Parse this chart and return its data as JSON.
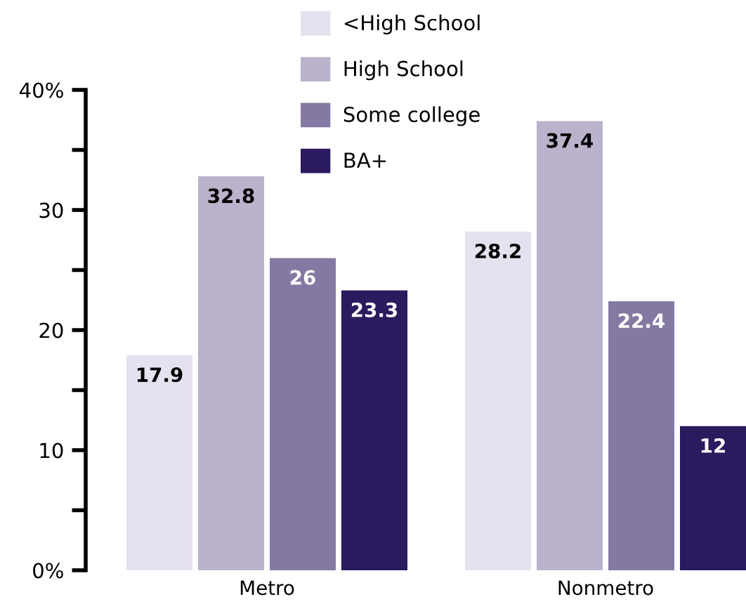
{
  "chart_data": {
    "type": "bar",
    "categories": [
      "Metro",
      "Nonmetro"
    ],
    "series": [
      {
        "name": "<High School",
        "color": "#e6e1ee",
        "values": [
          17.9,
          28.2
        ]
      },
      {
        "name": "High School",
        "color": "#bbb2cc",
        "values": [
          32.8,
          37.4
        ]
      },
      {
        "name": "Some college",
        "color": "#8579a3",
        "values": [
          26,
          22.4
        ]
      },
      {
        "name": "BA+",
        "color": "#2b1a5e",
        "values": [
          23.3,
          12
        ]
      }
    ],
    "ylim": [
      0,
      40
    ],
    "yticks": [
      {
        "value": 0,
        "label": "0%"
      },
      {
        "value": 5,
        "label": null
      },
      10,
      {
        "value": 15,
        "label": null
      },
      20,
      {
        "value": 25,
        "label": null
      },
      30,
      {
        "value": 35,
        "label": null
      },
      {
        "value": 40,
        "label": "40%"
      }
    ],
    "data_labels": true,
    "grid": false,
    "legend": "top"
  }
}
